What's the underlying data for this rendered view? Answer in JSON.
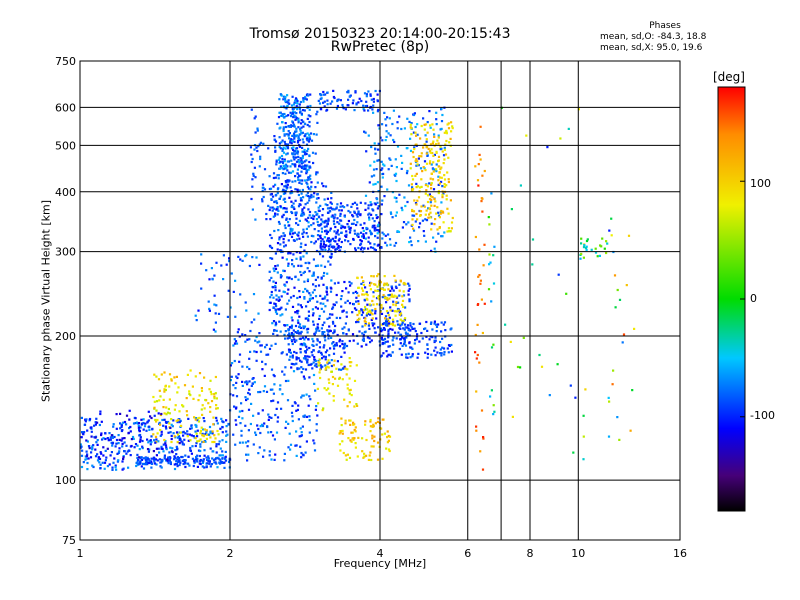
{
  "chart_data": {
    "type": "scatter",
    "title": "Tromsø 20150323 20:14:00-20:15:43",
    "subtitle": "RwPretec (8p)",
    "xlabel": "Frequency [MHz]",
    "ylabel": "Stationary phase Virtual Height [km]",
    "x_scale": "log",
    "y_scale": "log",
    "xlim": [
      1,
      16
    ],
    "ylim": [
      75,
      750
    ],
    "x_ticks": [
      "1",
      "2",
      "4",
      "6",
      "8",
      "10",
      "16"
    ],
    "x_tick_values": [
      1,
      2,
      4,
      6,
      8,
      10,
      16
    ],
    "x_minor_gridlines": [
      7
    ],
    "y_ticks": [
      "75",
      "100",
      "200",
      "300",
      "400",
      "500",
      "600",
      "750"
    ],
    "y_tick_values": [
      75,
      100,
      200,
      300,
      400,
      500,
      600,
      750
    ],
    "grid": true,
    "colorbar": {
      "unit_label": "[deg]",
      "ticks": [
        "100",
        "0",
        "-100"
      ],
      "tick_values": [
        100,
        0,
        -100
      ],
      "range": [
        -180,
        180
      ]
    },
    "annotation": {
      "title": "Phases",
      "line1": "mean, sd,O: -84.3, 18.8",
      "line2": "mean, sd,X:  95.0, 19.6"
    },
    "clusters": [
      {
        "f": [
          1.0,
          2.0
        ],
        "h": [
          105,
          135
        ],
        "n": 380,
        "phase": [
          -110,
          -60
        ]
      },
      {
        "f": [
          1.3,
          2.0
        ],
        "h": [
          108,
          112
        ],
        "n": 120,
        "phase": [
          -105,
          -75
        ]
      },
      {
        "f": [
          1.4,
          1.9
        ],
        "h": [
          120,
          170
        ],
        "n": 140,
        "phase": [
          60,
          120
        ]
      },
      {
        "f": [
          1.0,
          1.6
        ],
        "h": [
          110,
          140
        ],
        "n": 100,
        "phase": [
          -130,
          -95
        ]
      },
      {
        "f": [
          2.0,
          3.0
        ],
        "h": [
          110,
          200
        ],
        "n": 260,
        "phase": [
          -110,
          -60
        ]
      },
      {
        "f": [
          2.4,
          3.2
        ],
        "h": [
          200,
          420
        ],
        "n": 480,
        "phase": [
          -115,
          -60
        ]
      },
      {
        "f": [
          2.5,
          2.9
        ],
        "h": [
          420,
          640
        ],
        "n": 300,
        "phase": [
          -105,
          -55
        ]
      },
      {
        "f": [
          2.6,
          3.4
        ],
        "h": [
          170,
          210
        ],
        "n": 160,
        "phase": [
          -110,
          -70
        ]
      },
      {
        "f": [
          3.0,
          4.0
        ],
        "h": [
          300,
          380
        ],
        "n": 240,
        "phase": [
          -115,
          -70
        ]
      },
      {
        "f": [
          3.2,
          4.6
        ],
        "h": [
          190,
          260
        ],
        "n": 220,
        "phase": [
          -115,
          -75
        ]
      },
      {
        "f": [
          3.6,
          4.5
        ],
        "h": [
          210,
          270
        ],
        "n": 130,
        "phase": [
          70,
          120
        ]
      },
      {
        "f": [
          4.0,
          5.6
        ],
        "h": [
          180,
          215
        ],
        "n": 140,
        "phase": [
          -110,
          -75
        ]
      },
      {
        "f": [
          3.7,
          5.4
        ],
        "h": [
          300,
          600
        ],
        "n": 240,
        "phase": [
          -105,
          -50
        ]
      },
      {
        "f": [
          4.6,
          5.6
        ],
        "h": [
          330,
          560
        ],
        "n": 200,
        "phase": [
          70,
          130
        ]
      },
      {
        "f": [
          3.0,
          4.0
        ],
        "h": [
          590,
          650
        ],
        "n": 80,
        "phase": [
          -110,
          -70
        ]
      },
      {
        "f": [
          3.3,
          4.2
        ],
        "h": [
          110,
          135
        ],
        "n": 90,
        "phase": [
          70,
          130
        ]
      },
      {
        "f": [
          3.0,
          3.6
        ],
        "h": [
          140,
          180
        ],
        "n": 60,
        "phase": [
          60,
          110
        ]
      },
      {
        "f": [
          1.7,
          2.3
        ],
        "h": [
          200,
          300
        ],
        "n": 60,
        "phase": [
          -110,
          -60
        ]
      },
      {
        "f": [
          2.2,
          3.0
        ],
        "h": [
          350,
          600
        ],
        "n": 160,
        "phase": [
          -100,
          -70
        ]
      },
      {
        "f": [
          6.2,
          6.5
        ],
        "h": [
          100,
          660
        ],
        "n": 40,
        "phase": [
          110,
          175
        ]
      },
      {
        "f": [
          6.6,
          6.8
        ],
        "h": [
          105,
          400
        ],
        "n": 18,
        "phase": [
          -70,
          60
        ]
      },
      {
        "f": [
          7.0,
          10.5
        ],
        "h": [
          110,
          650
        ],
        "n": 30,
        "phase": [
          -110,
          100
        ]
      },
      {
        "f": [
          10.0,
          11.5
        ],
        "h": [
          290,
          320
        ],
        "n": 25,
        "phase": [
          -60,
          60
        ]
      },
      {
        "f": [
          11.5,
          13.0
        ],
        "h": [
          120,
          400
        ],
        "n": 22,
        "phase": [
          -110,
          160
        ]
      }
    ]
  }
}
